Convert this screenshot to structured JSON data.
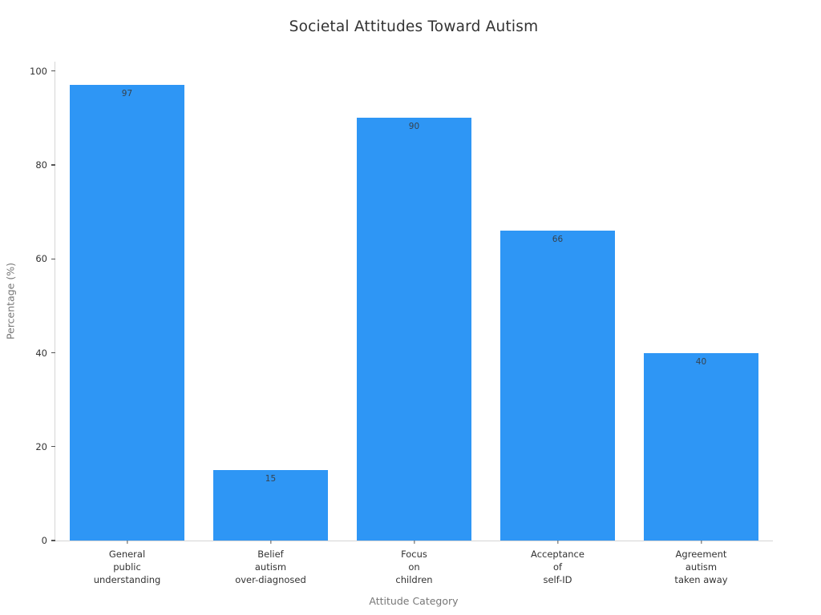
{
  "chart_data": {
    "type": "bar",
    "title": "Societal Attitudes Toward Autism",
    "xlabel": "Attitude Category",
    "ylabel": "Percentage (%)",
    "categories": [
      [
        "General",
        "public",
        "understanding"
      ],
      [
        "Belief",
        "autism",
        "over-diagnosed"
      ],
      [
        "Focus",
        "on",
        "children"
      ],
      [
        "Acceptance",
        "of",
        "self-ID"
      ],
      [
        "Agreement",
        "autism",
        "taken away"
      ]
    ],
    "values": [
      97,
      15,
      90,
      66,
      40
    ],
    "yticks": [
      0,
      20,
      40,
      60,
      80,
      100
    ],
    "ylim": [
      0,
      102
    ],
    "grid": false,
    "legend": null,
    "bar_color": "#2e96f5",
    "value_label_color": "#37424d",
    "tick_label_color": "#333333",
    "axis_title_color": "#777777",
    "spine_color": "#d5d5d5"
  }
}
